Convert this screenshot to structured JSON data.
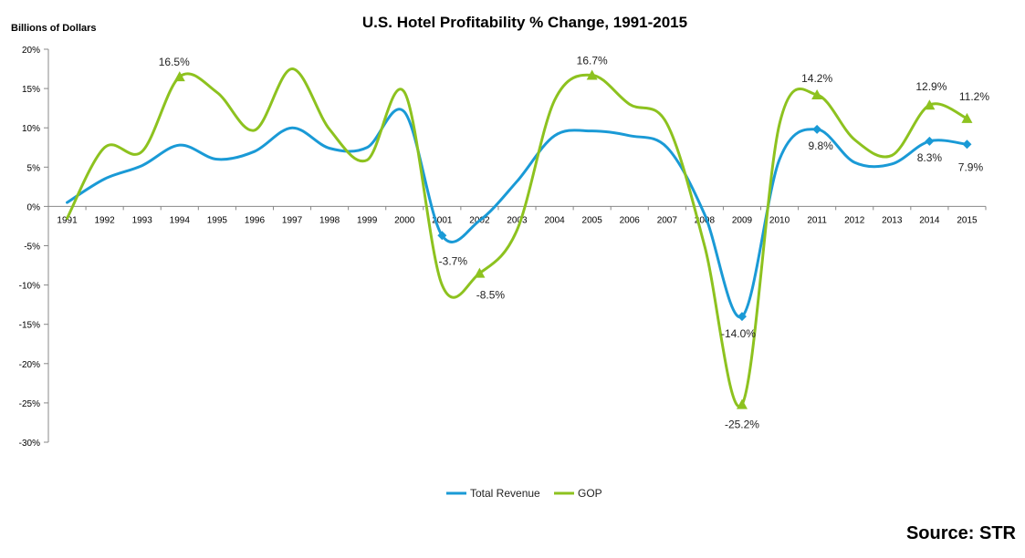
{
  "chart_data": {
    "type": "line",
    "title": "U.S. Hotel Profitability % Change, 1991-2015",
    "ylabel": "Billions of Dollars",
    "source": "Source: STR",
    "categories": [
      "1991",
      "1992",
      "1993",
      "1994",
      "1995",
      "1996",
      "1997",
      "1998",
      "1999",
      "2000",
      "2001",
      "2002",
      "2003",
      "2004",
      "2005",
      "2006",
      "2007",
      "2008",
      "2009",
      "2010",
      "2011",
      "2012",
      "2013",
      "2014",
      "2015"
    ],
    "ylim": [
      -30,
      20
    ],
    "yticks": [
      20,
      15,
      10,
      5,
      0,
      -5,
      -10,
      -15,
      -20,
      -25,
      -30
    ],
    "ytick_labels": [
      "20%",
      "15%",
      "10%",
      "5%",
      "0%",
      "-5%",
      "-10%",
      "-15%",
      "-20%",
      "-25%",
      "-30%"
    ],
    "legend_position": "bottom",
    "grid": false,
    "series": [
      {
        "name": "Total Revenue",
        "color": "#1a9ad6",
        "marker": "diamond",
        "values": [
          0.5,
          3.5,
          5.2,
          7.8,
          6.0,
          7.0,
          10.0,
          7.4,
          7.5,
          12.0,
          -3.7,
          -1.8,
          3.2,
          9.0,
          9.6,
          9.0,
          7.5,
          -1.0,
          -14.0,
          6.0,
          9.8,
          5.6,
          5.4,
          8.3,
          7.9
        ],
        "labels": {
          "2001": "-3.7%",
          "2009": "-14.0%",
          "2011": "9.8%",
          "2014": "8.3%",
          "2015": "7.9%"
        }
      },
      {
        "name": "GOP",
        "color": "#8dc21f",
        "marker": "triangle",
        "values": [
          -1.5,
          7.5,
          7.0,
          16.5,
          14.5,
          9.7,
          17.5,
          9.8,
          5.9,
          14.5,
          -10.0,
          -8.5,
          -3.0,
          13.5,
          16.7,
          13.0,
          10.5,
          -5.0,
          -25.2,
          10.5,
          14.2,
          8.5,
          6.5,
          12.9,
          11.2
        ],
        "labels": {
          "1994": "16.5%",
          "2002": "-8.5%",
          "2005": "16.7%",
          "2009": "-25.2%",
          "2011": "14.2%",
          "2014": "12.9%",
          "2015": "11.2%"
        }
      }
    ]
  }
}
